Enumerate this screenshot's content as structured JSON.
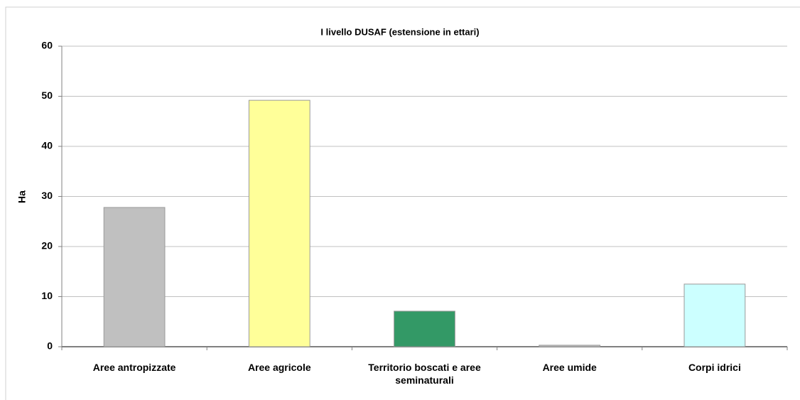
{
  "chart_data": {
    "type": "bar",
    "title": "I livello DUSAF  (estensione in ettari)",
    "y_label": "Ha",
    "categories": [
      "Aree antropizzate",
      "Aree agricole",
      "Territorio boscati e aree seminaturali",
      "Aree umide",
      "Corpi idrici"
    ],
    "values": [
      27.8,
      49.2,
      7.1,
      0.3,
      12.5
    ],
    "colors": [
      "#c0c0c0",
      "#ffff99",
      "#339966",
      "#c0c0c0",
      "#ccffff"
    ],
    "ylim": [
      0,
      60
    ],
    "yticks": [
      0,
      10,
      20,
      30,
      40,
      50,
      60
    ],
    "grid": true
  }
}
